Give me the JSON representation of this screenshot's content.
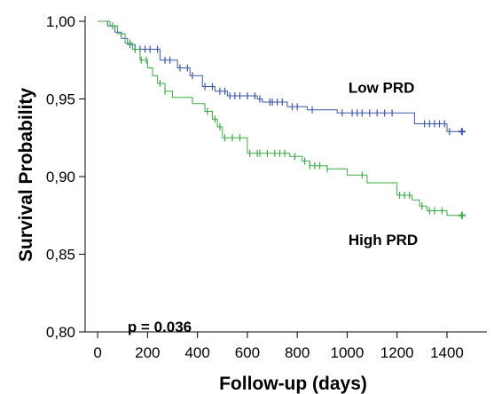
{
  "chart_data": {
    "type": "line",
    "subtype": "kaplan-meier step curve with censor ticks",
    "xlabel": "Follow-up (days)",
    "ylabel": "Survival Probability",
    "xlim": [
      -50,
      1560
    ],
    "ylim": [
      0.8,
      1.0
    ],
    "x_ticks": [
      0,
      200,
      400,
      600,
      800,
      1000,
      1200,
      1400
    ],
    "x_tick_labels": [
      "0",
      "200",
      "400",
      "600",
      "800",
      "1000",
      "1200",
      "1400"
    ],
    "y_ticks": [
      0.8,
      0.85,
      0.9,
      0.95,
      1.0
    ],
    "y_tick_labels": [
      "0,80",
      "0,85",
      "0,90",
      "0,95",
      "1,00"
    ],
    "grid": false,
    "annotations": [
      {
        "text": "p = 0.036",
        "x": 120,
        "y": 0.8
      },
      {
        "text": "Low PRD",
        "x": 1005,
        "y": 0.954
      },
      {
        "text": "High PRD",
        "x": 1005,
        "y": 0.856
      }
    ],
    "series": [
      {
        "name": "Low PRD",
        "color": "#3a56a8",
        "steps": [
          [
            0,
            1.0
          ],
          [
            40,
            0.997
          ],
          [
            70,
            0.993
          ],
          [
            95,
            0.989
          ],
          [
            120,
            0.985
          ],
          [
            150,
            0.982
          ],
          [
            250,
            0.975
          ],
          [
            320,
            0.97
          ],
          [
            370,
            0.965
          ],
          [
            420,
            0.958
          ],
          [
            470,
            0.955
          ],
          [
            520,
            0.952
          ],
          [
            640,
            0.95
          ],
          [
            660,
            0.948
          ],
          [
            700,
            0.948
          ],
          [
            760,
            0.945
          ],
          [
            840,
            0.943
          ],
          [
            960,
            0.941
          ],
          [
            1270,
            0.934
          ],
          [
            1400,
            0.929
          ],
          [
            1460,
            0.929
          ]
        ],
        "censor_x": [
          130,
          150,
          170,
          190,
          210,
          240,
          270,
          290,
          330,
          360,
          380,
          430,
          460,
          490,
          510,
          530,
          550,
          570,
          600,
          630,
          650,
          690,
          700,
          720,
          740,
          780,
          800,
          860,
          980,
          1020,
          1040,
          1060,
          1090,
          1120,
          1150,
          1180,
          1310,
          1330,
          1350,
          1370,
          1390,
          1410,
          1460
        ]
      },
      {
        "name": "High PRD",
        "color": "#3daa48",
        "steps": [
          [
            0,
            1.0
          ],
          [
            50,
            0.997
          ],
          [
            80,
            0.992
          ],
          [
            110,
            0.986
          ],
          [
            140,
            0.982
          ],
          [
            170,
            0.975
          ],
          [
            200,
            0.97
          ],
          [
            220,
            0.965
          ],
          [
            240,
            0.96
          ],
          [
            270,
            0.955
          ],
          [
            300,
            0.951
          ],
          [
            380,
            0.947
          ],
          [
            430,
            0.942
          ],
          [
            460,
            0.937
          ],
          [
            480,
            0.932
          ],
          [
            500,
            0.925
          ],
          [
            600,
            0.915
          ],
          [
            770,
            0.913
          ],
          [
            820,
            0.91
          ],
          [
            850,
            0.907
          ],
          [
            920,
            0.905
          ],
          [
            1000,
            0.901
          ],
          [
            1080,
            0.896
          ],
          [
            1200,
            0.888
          ],
          [
            1260,
            0.885
          ],
          [
            1290,
            0.881
          ],
          [
            1320,
            0.878
          ],
          [
            1400,
            0.875
          ],
          [
            1460,
            0.875
          ]
        ],
        "censor_x": [
          60,
          130,
          150,
          175,
          195,
          250,
          270,
          440,
          470,
          490,
          510,
          540,
          570,
          610,
          640,
          650,
          680,
          710,
          730,
          750,
          790,
          830,
          850,
          870,
          890,
          920,
          1060,
          1210,
          1230,
          1250,
          1300,
          1330,
          1350,
          1380,
          1460
        ]
      }
    ]
  }
}
